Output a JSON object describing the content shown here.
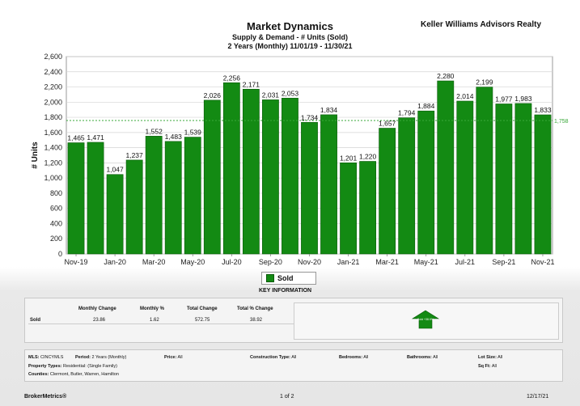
{
  "header": {
    "title": "Market Dynamics",
    "subtitle": "Supply & Demand - # Units (Sold)",
    "period": "2 Years (Monthly) 11/01/19 - 11/30/21",
    "company": "Keller Williams Advisors Realty"
  },
  "chart_data": {
    "type": "bar",
    "ylabel": "# Units",
    "ylim": [
      0,
      2600
    ],
    "yticks": [
      0,
      200,
      400,
      600,
      800,
      1000,
      1200,
      1400,
      1600,
      1800,
      2000,
      2200,
      2400,
      2600
    ],
    "ytick_labels": [
      "0",
      "200",
      "400",
      "600",
      "800",
      "1,000",
      "1,200",
      "1,400",
      "1,600",
      "1,800",
      "2,000",
      "2,200",
      "2,400",
      "2,600"
    ],
    "x_tick_labels": [
      "Nov-19",
      "Jan-20",
      "Mar-20",
      "May-20",
      "Jul-20",
      "Sep-20",
      "Nov-20",
      "Jan-21",
      "Mar-21",
      "May-21",
      "Jul-21",
      "Sep-21",
      "Nov-21"
    ],
    "values": [
      1465,
      1471,
      1047,
      1237,
      1552,
      1483,
      1539,
      2026,
      2256,
      2171,
      2031,
      2053,
      1734,
      1834,
      1201,
      1220,
      1657,
      1794,
      1884,
      2280,
      2014,
      2199,
      1977,
      1983,
      1833
    ],
    "value_labels": [
      "1,465",
      "1,471",
      "1,047",
      "1,237",
      "1,552",
      "1,483",
      "1,539",
      "2,026",
      "2,256",
      "2,171",
      "2,031",
      "2,053",
      "1,734",
      "1,834",
      "1,201",
      "1,220",
      "1,657",
      "1,794",
      "1,884",
      "2,280",
      "2,014",
      "2,199",
      "1,977",
      "1,983",
      "1,833"
    ],
    "average_line": 1758,
    "average_label": "1,758",
    "grid": true,
    "series": [
      {
        "name": "Sold",
        "color": "#138a13"
      }
    ],
    "legend": "bottom-center"
  },
  "key_info": {
    "title": "KEY INFORMATION",
    "headers": [
      "Monthly Change",
      "Monthly %",
      "Total Change",
      "Total % Change"
    ],
    "row_label": "Sold",
    "row_values": [
      "23.86",
      "1.62",
      "572.75",
      "38.92"
    ],
    "arrow_text": "Sold +38.9%"
  },
  "filters": {
    "mls_label": "MLS:",
    "mls": "CINCYMLS",
    "period_label": "Period:",
    "period": "2 Years (Monthly)",
    "price_label": "Price:",
    "price": "All",
    "construction_label": "Construction Type:",
    "construction": "All",
    "bedrooms_label": "Bedrooms:",
    "bedrooms": "All",
    "bathrooms_label": "Bathrooms:",
    "bathrooms": "All",
    "lotsize_label": "Lot Size:",
    "lotsize": "All",
    "sqft_label": "Sq Ft:",
    "sqft": "All",
    "proptype_label": "Property Types:",
    "proptype": "Residential: (Single Family)",
    "counties_label": "Counties:",
    "counties": "Clermont, Butler, Warren, Hamilton"
  },
  "footer": {
    "brand": "BrokerMetrics®",
    "page": "1 of 2",
    "date": "12/17/21"
  },
  "colors": {
    "bar": "#138a13",
    "bar_edge": "#0a5a0a",
    "avg_line": "#3aa83a"
  }
}
